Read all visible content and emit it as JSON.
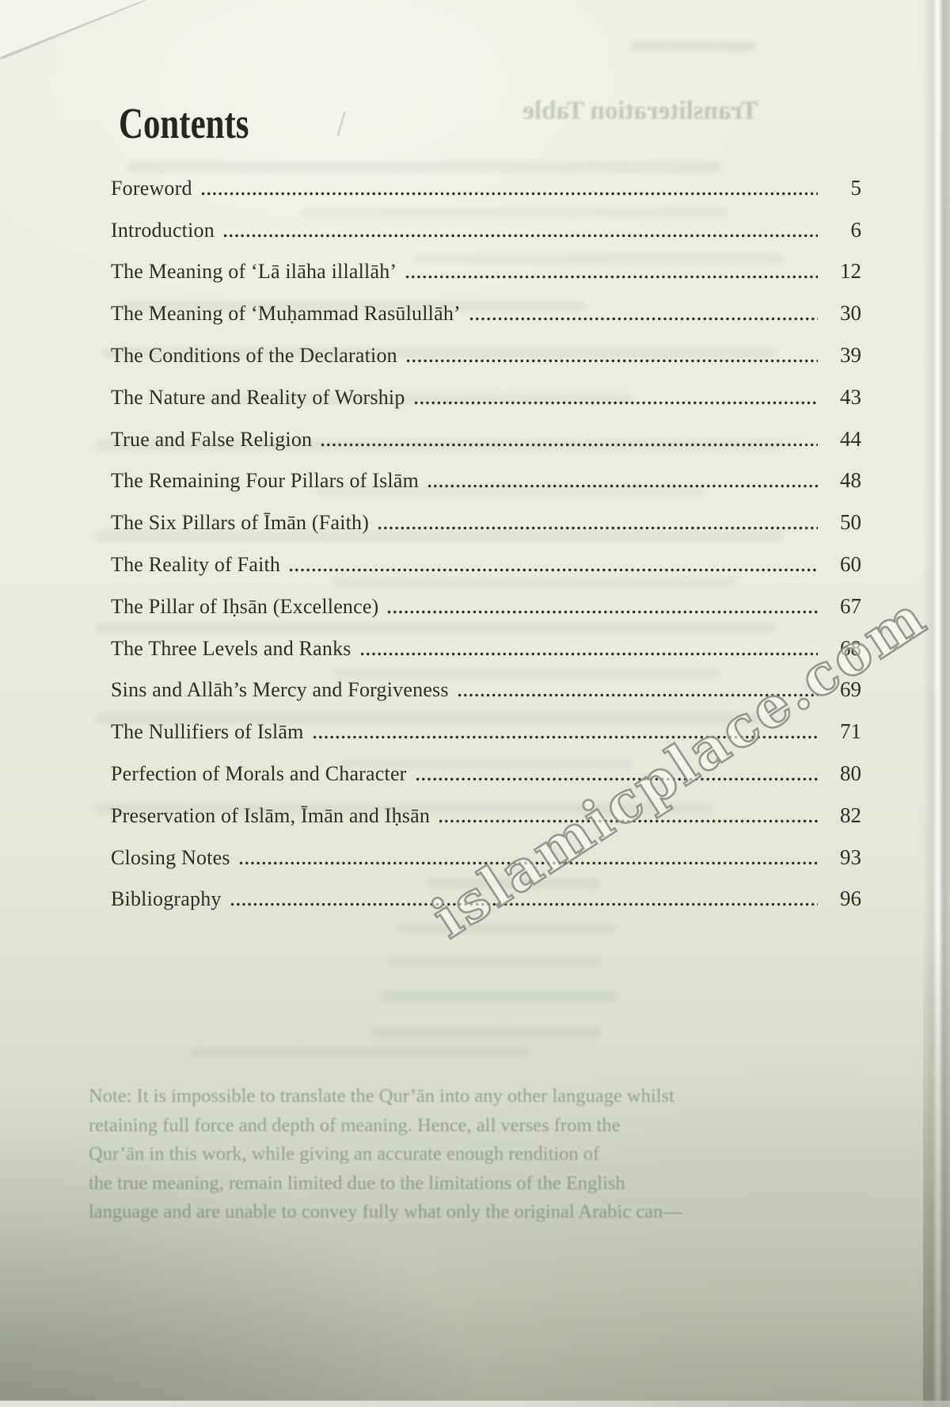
{
  "page": {
    "title": "Contents"
  },
  "toc": {
    "entries": [
      {
        "label": "Foreword",
        "page": "5"
      },
      {
        "label": "Introduction",
        "page": "6"
      },
      {
        "label": "The Meaning of ‘Lā ilāha illallāh’",
        "page": "12"
      },
      {
        "label": "The Meaning of ‘Muḥammad Rasūlullāh’",
        "page": "30"
      },
      {
        "label": "The Conditions of the Declaration",
        "page": "39"
      },
      {
        "label": "The Nature and Reality of Worship",
        "page": "43"
      },
      {
        "label": "True and False Religion",
        "page": "44"
      },
      {
        "label": "The Remaining Four Pillars of Islām",
        "page": "48"
      },
      {
        "label": "The Six Pillars of Īmān (Faith)",
        "page": "50"
      },
      {
        "label": "The Reality of Faith",
        "page": "60"
      },
      {
        "label": "The Pillar of Iḥsān (Excellence)",
        "page": "67"
      },
      {
        "label": "The Three Levels and Ranks",
        "page": "68"
      },
      {
        "label": "Sins and Allāh’s Mercy and Forgiveness",
        "page": "69"
      },
      {
        "label": "The Nullifiers of Islām",
        "page": "71"
      },
      {
        "label": "Perfection of Morals and Character",
        "page": "80"
      },
      {
        "label": "Preservation of Islām, Īmān and Iḥsān",
        "page": "82"
      },
      {
        "label": "Closing Notes",
        "page": "93"
      },
      {
        "label": "Bibliography",
        "page": "96"
      }
    ]
  },
  "watermark": {
    "text": "islamicplace.com"
  },
  "bleedthrough": {
    "heading": "Transliteration Table",
    "note_lines": [
      "Note: It is impossible to translate the Qur’ān into any other language whilst",
      "retaining full force and depth of meaning. Hence, all verses from the",
      "Qur’ān in this work, while giving an accurate enough rendition of",
      "the true meaning, remain limited due to the limitations of the English",
      "language and are unable to convey fully what only the original Arabic can—"
    ]
  }
}
